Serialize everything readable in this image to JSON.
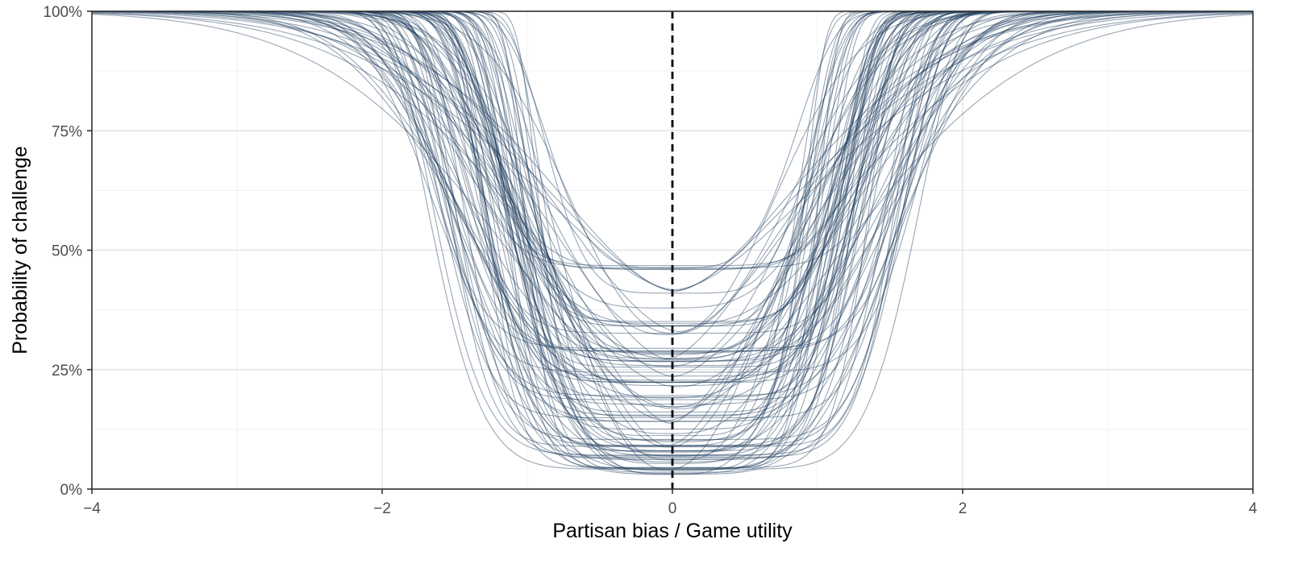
{
  "chart_data": {
    "type": "line",
    "title": "",
    "xlabel": "Partisan bias / Game utility",
    "ylabel": "Probability of challenge",
    "xlim": [
      -4,
      4
    ],
    "ylim": [
      0,
      1
    ],
    "x_ticks": [
      -4,
      -2,
      0,
      2,
      4
    ],
    "x_tick_labels": [
      "−4",
      "−2",
      "0",
      "2",
      "4"
    ],
    "y_ticks": [
      0,
      0.25,
      0.5,
      0.75,
      1.0
    ],
    "y_tick_labels": [
      "0%",
      "25%",
      "50%",
      "75%",
      "100%"
    ],
    "grid": true,
    "legend": "none",
    "reference_line": {
      "x": 0,
      "style": "dashed",
      "color": "#000000"
    },
    "series_color": "#1b3a5c",
    "series_opacity": 0.45,
    "curve_family": {
      "form": "p(x) = floor + (1 - floor) * (1 - exp(-(|x|/scale)^shape))",
      "count": 100,
      "floor_range": [
        0.03,
        0.48
      ],
      "scale_range": [
        0.9,
        1.75
      ],
      "shape_range": [
        1.6,
        9.0
      ]
    }
  },
  "colors": {
    "background": "#ffffff",
    "grid_major": "#e3e3e3",
    "grid_minor": "#f1f1f1",
    "frame": "#333333",
    "tick_label": "#4d4d4d",
    "axis_title": "#000000"
  }
}
